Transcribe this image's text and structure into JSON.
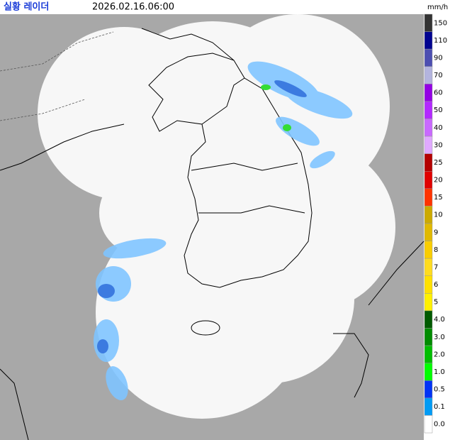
{
  "header": {
    "title": "실황 레이더",
    "time": "2026.02.16.06:00",
    "unit": "mm/h"
  },
  "legend": {
    "items": [
      {
        "label": "150",
        "color": "#333333"
      },
      {
        "label": "110",
        "color": "#000390"
      },
      {
        "label": "90",
        "color": "#4c4eb1"
      },
      {
        "label": "70",
        "color": "#b3b4de"
      },
      {
        "label": "60",
        "color": "#9300e4"
      },
      {
        "label": "50",
        "color": "#b329ff"
      },
      {
        "label": "40",
        "color": "#c969ff"
      },
      {
        "label": "30",
        "color": "#e0a9ff"
      },
      {
        "label": "25",
        "color": "#b40000"
      },
      {
        "label": "20",
        "color": "#e00000"
      },
      {
        "label": "15",
        "color": "#ff3300"
      },
      {
        "label": "10",
        "color": "#ccaa00"
      },
      {
        "label": "9",
        "color": "#e0b900"
      },
      {
        "label": "8",
        "color": "#f9cd00"
      },
      {
        "label": "7",
        "color": "#ffdc1f"
      },
      {
        "label": "6",
        "color": "#ffe100"
      },
      {
        "label": "5",
        "color": "#fff100"
      },
      {
        "label": "4.0",
        "color": "#005a00"
      },
      {
        "label": "3.0",
        "color": "#008c00"
      },
      {
        "label": "2.0",
        "color": "#00be00"
      },
      {
        "label": "1.0",
        "color": "#00ff00"
      },
      {
        "label": "0.5",
        "color": "#0033f5"
      },
      {
        "label": "0.1",
        "color": "#009bf5"
      },
      {
        "label": "0.0",
        "color": "#ffffff"
      }
    ]
  }
}
